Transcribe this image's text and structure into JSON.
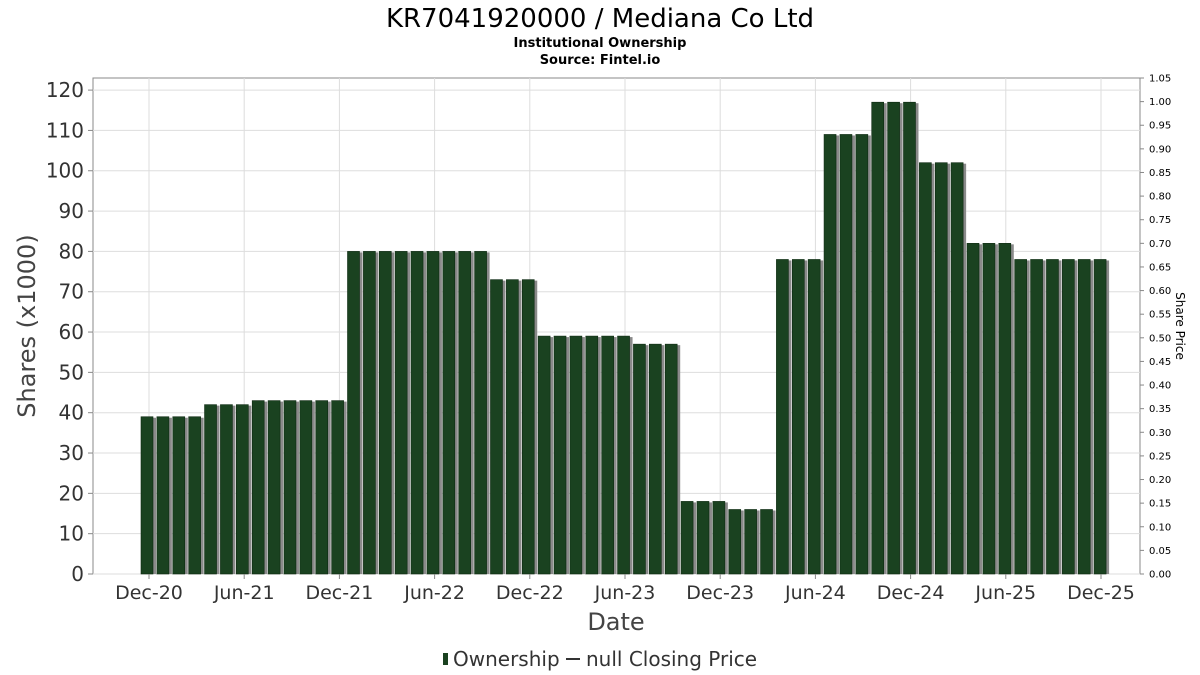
{
  "chart_data": {
    "type": "bar",
    "title": "KR7041920000 / Mediana Co Ltd",
    "subtitle": "Institutional Ownership",
    "source": "Source: Fintel.io",
    "xlabel": "Date",
    "ylabel": "Shares (x1000)",
    "y2label": "Share Price",
    "ylim": [
      0,
      123
    ],
    "y2lim": [
      0,
      1.05
    ],
    "yticks": [
      0,
      10,
      20,
      30,
      40,
      50,
      60,
      70,
      80,
      90,
      100,
      110,
      120
    ],
    "y2ticks": [
      "0.00",
      "0.05",
      "0.10",
      "0.15",
      "0.20",
      "0.25",
      "0.30",
      "0.35",
      "0.40",
      "0.45",
      "0.50",
      "0.55",
      "0.60",
      "0.65",
      "0.70",
      "0.75",
      "0.80",
      "0.85",
      "0.90",
      "0.95",
      "1.00",
      "1.05"
    ],
    "xticks": [
      "Dec-20",
      "Jun-21",
      "Dec-21",
      "Jun-22",
      "Dec-22",
      "Jun-23",
      "Dec-23",
      "Jun-24",
      "Dec-24",
      "Jun-25",
      "Dec-25"
    ],
    "series": [
      {
        "name": "Ownership",
        "color": "#1a4220",
        "values": [
          39,
          39,
          39,
          39,
          42,
          42,
          42,
          43,
          43,
          43,
          43,
          43,
          43,
          80,
          80,
          80,
          80,
          80,
          80,
          80,
          80,
          80,
          73,
          73,
          73,
          59,
          59,
          59,
          59,
          59,
          59,
          57,
          57,
          57,
          18,
          18,
          18,
          16,
          16,
          16,
          78,
          78,
          78,
          109,
          109,
          109,
          117,
          117,
          117,
          102,
          102,
          102,
          82,
          82,
          82,
          78,
          78,
          78,
          78,
          78,
          78
        ]
      }
    ],
    "legend": [
      {
        "label": "Ownership",
        "color": "#1a4220"
      },
      {
        "label": "null Closing Price",
        "color": "#333333"
      }
    ],
    "legend_position": "bottom-center",
    "grid": true
  }
}
